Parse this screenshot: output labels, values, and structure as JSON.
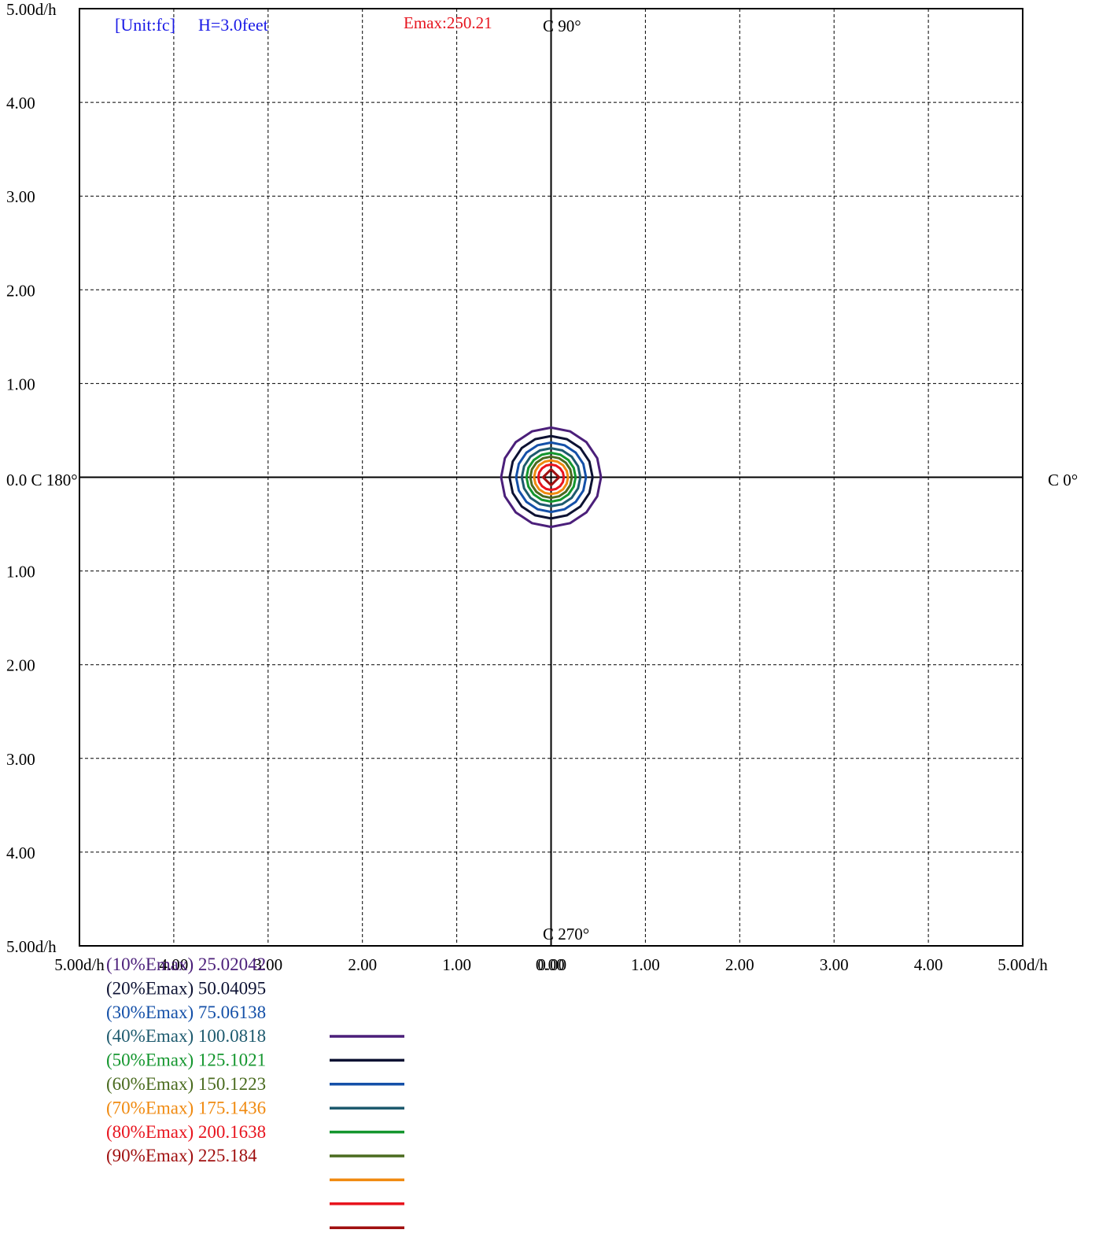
{
  "chart_data": {
    "type": "isolux_contour",
    "unit_label": "[Unit:fc]",
    "height_label": "H=3.0feet",
    "emax_label": "Emax:250.21",
    "emax": 250.21,
    "c_labels": {
      "c0": "C 0°",
      "c90": "C 90°",
      "c180": "0.0 C 180°",
      "c270": "C 270°"
    },
    "x_range": [
      -5,
      5
    ],
    "y_range": [
      -5,
      5
    ],
    "x_ticks": [
      {
        "value": -5,
        "label": "5.00d/h"
      },
      {
        "value": -4,
        "label": "4.00"
      },
      {
        "value": -3,
        "label": "3.00"
      },
      {
        "value": -2,
        "label": "2.00"
      },
      {
        "value": -1,
        "label": "1.00"
      },
      {
        "value": -0.01,
        "label": "0.00"
      },
      {
        "value": 0.01,
        "label": "0.00"
      },
      {
        "value": 1,
        "label": "1.00"
      },
      {
        "value": 2,
        "label": "2.00"
      },
      {
        "value": 3,
        "label": "3.00"
      },
      {
        "value": 4,
        "label": "4.00"
      },
      {
        "value": 5,
        "label": "5.00d/h"
      }
    ],
    "y_ticks": [
      {
        "value": 5,
        "label": "5.00d/h"
      },
      {
        "value": 4,
        "label": "4.00"
      },
      {
        "value": 3,
        "label": "3.00"
      },
      {
        "value": 2,
        "label": "2.00"
      },
      {
        "value": 1,
        "label": "1.00"
      },
      {
        "value": -1,
        "label": "1.00"
      },
      {
        "value": -2,
        "label": "2.00"
      },
      {
        "value": -3,
        "label": "3.00"
      },
      {
        "value": -4,
        "label": "4.00"
      },
      {
        "value": -5,
        "label": "5.00d/h"
      }
    ],
    "grid": true,
    "contours": [
      {
        "label": "(10%Emax) 25.02042",
        "level": 25.02042,
        "radius": 0.53,
        "color": "#4b1f7a"
      },
      {
        "label": "(20%Emax) 50.04095",
        "level": 50.04095,
        "radius": 0.44,
        "color": "#0d1233"
      },
      {
        "label": "(30%Emax) 75.06138",
        "level": 75.06138,
        "radius": 0.37,
        "color": "#1450a8"
      },
      {
        "label": "(40%Emax) 100.0818",
        "level": 100.0818,
        "radius": 0.31,
        "color": "#1d5a6e"
      },
      {
        "label": "(50%Emax) 125.1021",
        "level": 125.1021,
        "radius": 0.26,
        "color": "#14962e"
      },
      {
        "label": "(60%Emax) 150.1223",
        "level": 150.1223,
        "radius": 0.22,
        "color": "#4a6b1f"
      },
      {
        "label": "(70%Emax) 175.1436",
        "level": 175.1436,
        "radius": 0.18,
        "color": "#f08a10"
      },
      {
        "label": "(80%Emax) 200.1638",
        "level": 200.1638,
        "radius": 0.135,
        "color": "#e8141e"
      },
      {
        "label": "(90%Emax) 225.184",
        "level": 225.184,
        "radius": 0.085,
        "color": "#a01010"
      }
    ]
  }
}
